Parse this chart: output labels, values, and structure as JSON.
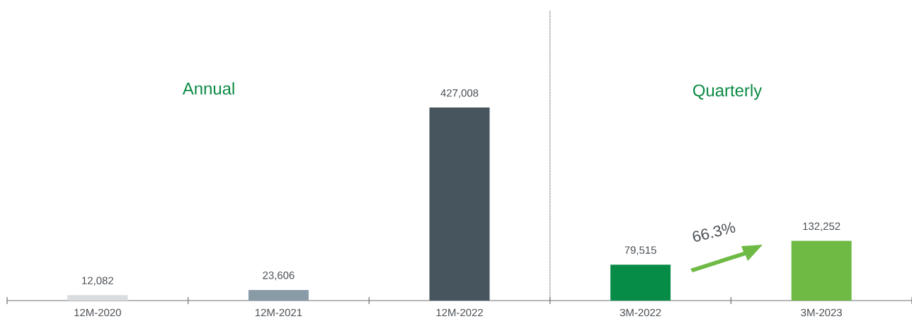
{
  "chart_data": {
    "type": "bar",
    "categories": [
      "12M-2020",
      "12M-2021",
      "12M-2022",
      "3M-2022",
      "3M-2023"
    ],
    "values": [
      12082,
      23606,
      427008,
      79515,
      132252
    ],
    "colors": [
      "#d9dde0",
      "#8a9ba8",
      "#46555e",
      "#078c47",
      "#6fba45"
    ],
    "value_labels": [
      "12,082",
      "23,606",
      "427,008",
      "79,515",
      "132,252"
    ],
    "annotations": [
      "Annual",
      "Quarterly",
      "66.3%"
    ]
  }
}
